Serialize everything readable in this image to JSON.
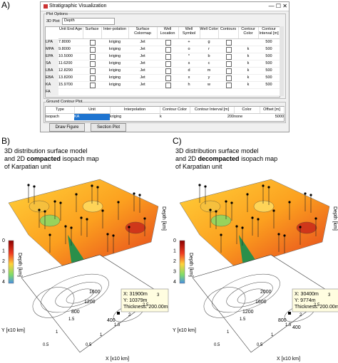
{
  "panel_a": {
    "label": "A)",
    "window_title": "Stratigraphic Visualization",
    "plot_options_title": "Plot Options",
    "plot_3d_label": "3D Plot:",
    "plot_3d_value": "Depth",
    "table": {
      "headers": [
        "Unit End Age",
        "Surface",
        "Inter-polation",
        "Surface Colormap",
        "Well Location",
        "Well Symbol",
        "Well Color",
        "Contours",
        "Contour Color",
        "Contour Interval [m]"
      ],
      "rows": [
        [
          "LPA",
          "7.8000",
          "kriging",
          "Jet",
          "+",
          "g",
          "500"
        ],
        [
          "MPA",
          "9.8000",
          "kriging",
          "Jet",
          "o",
          "r",
          "k",
          "500"
        ],
        [
          "EPA",
          "10.5000",
          "kriging",
          "Jet",
          "*",
          "b",
          "k",
          "500"
        ],
        [
          "SA",
          "11.6200",
          "kriging",
          "Jet",
          "s",
          "c",
          "k",
          "500"
        ],
        [
          "LBA",
          "12.8290",
          "kriging",
          "Jet",
          "d",
          "m",
          "k",
          "500"
        ],
        [
          "EBA",
          "13.8200",
          "kriging",
          "Jet",
          "x",
          "y",
          "k",
          "500"
        ],
        [
          "KA",
          "15.9700",
          "kriging",
          "Jet",
          "h",
          "w",
          "k",
          "500"
        ],
        [
          "FA"
        ]
      ]
    },
    "ground_title": "Ground Contour Plot",
    "ground_table": {
      "headers": [
        "Type",
        "Unit",
        "Interpolation",
        "Contour Color",
        "Contour Interval [m]",
        "Color",
        "Offset [m]"
      ],
      "row": [
        "isopach",
        "KA",
        "kriging",
        "k",
        "200",
        "none",
        "5000"
      ]
    },
    "buttons": [
      "Draw Figure",
      "Section Plot"
    ]
  },
  "panel_b": {
    "label": "B)",
    "title": {
      "line1": "3D distribution surface model",
      "line2_start": "and 2D ",
      "line2_bold": "compacted",
      "line2_end": " isopach map",
      "line3": "of Karpatian unit"
    },
    "z_axis_label": "Depth [km]",
    "colorbar": {
      "label": "Depth [km]",
      "ticks": [
        "0",
        "1",
        "2",
        "3",
        "4"
      ]
    },
    "contour_labels": [
      "1600",
      "1200",
      "800",
      "400"
    ],
    "tooltip": {
      "x": "X: 31900m",
      "y": "Y: 10379m",
      "thickness": "Thickness: 200.00m"
    },
    "y_axis_label": "Y [x10 km]",
    "x_axis_label": "X [x10 km]",
    "x_ticks": [
      "0.5",
      "1",
      "1.5",
      "2",
      "2.5",
      "3"
    ],
    "y_ticks": [
      "0.5",
      "1",
      "1.5"
    ]
  },
  "panel_c": {
    "label": "C)",
    "title": {
      "line1": "3D distribution surface model",
      "line2_start": "and 2D ",
      "line2_bold": "decompacted",
      "line2_end": " isopach map",
      "line3": "of Karpatian unit"
    },
    "z_axis_label": "Depth [km]",
    "colorbar": {
      "label": "Depth [km]",
      "ticks": [
        "0",
        "1",
        "2",
        "3",
        "4"
      ]
    },
    "contour_labels": [
      "2000",
      "1600",
      "1200",
      "800",
      "400"
    ],
    "tooltip": {
      "x": "X: 30400m",
      "y": "Y: 9774m",
      "thickness": "Thickness: 200.00m"
    },
    "y_axis_label": "Y [x10 km]",
    "x_axis_label": "X [x10 km]",
    "x_ticks": [
      "0.5",
      "1",
      "1.5",
      "2",
      "2.5",
      "3"
    ],
    "y_ticks": [
      "0.5",
      "1",
      "1.5"
    ]
  }
}
